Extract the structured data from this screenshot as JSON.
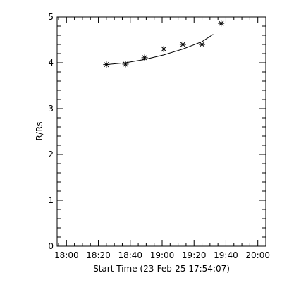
{
  "chart_data": {
    "type": "scatter",
    "title": "",
    "xlabel": "Start Time (23-Feb-25 17:54:07)",
    "ylabel": "R/Rs",
    "x_ticks": [
      "18:00",
      "18:20",
      "18:40",
      "19:00",
      "19:20",
      "19:40",
      "20:00"
    ],
    "y_ticks": [
      "0",
      "1",
      "2",
      "3",
      "4",
      "5"
    ],
    "xlim": [
      "17:54:07",
      "20:05:00"
    ],
    "ylim": [
      0,
      5
    ],
    "grid": false,
    "legend": "none",
    "series": [
      {
        "marker": "asterisk",
        "points": [
          {
            "x": "18:25",
            "y": 3.96
          },
          {
            "x": "18:37",
            "y": 3.97
          },
          {
            "x": "18:49",
            "y": 4.11
          },
          {
            "x": "19:01",
            "y": 4.3
          },
          {
            "x": "19:13",
            "y": 4.4
          },
          {
            "x": "19:25",
            "y": 4.4
          },
          {
            "x": "19:37",
            "y": 4.86
          }
        ]
      }
    ],
    "fit": {
      "type": "quadratic",
      "x": [
        "18:25",
        "18:37",
        "18:49",
        "19:01",
        "19:13",
        "19:25",
        "19:32"
      ],
      "y": [
        3.96,
        4.0,
        4.07,
        4.17,
        4.3,
        4.46,
        4.62
      ]
    }
  }
}
